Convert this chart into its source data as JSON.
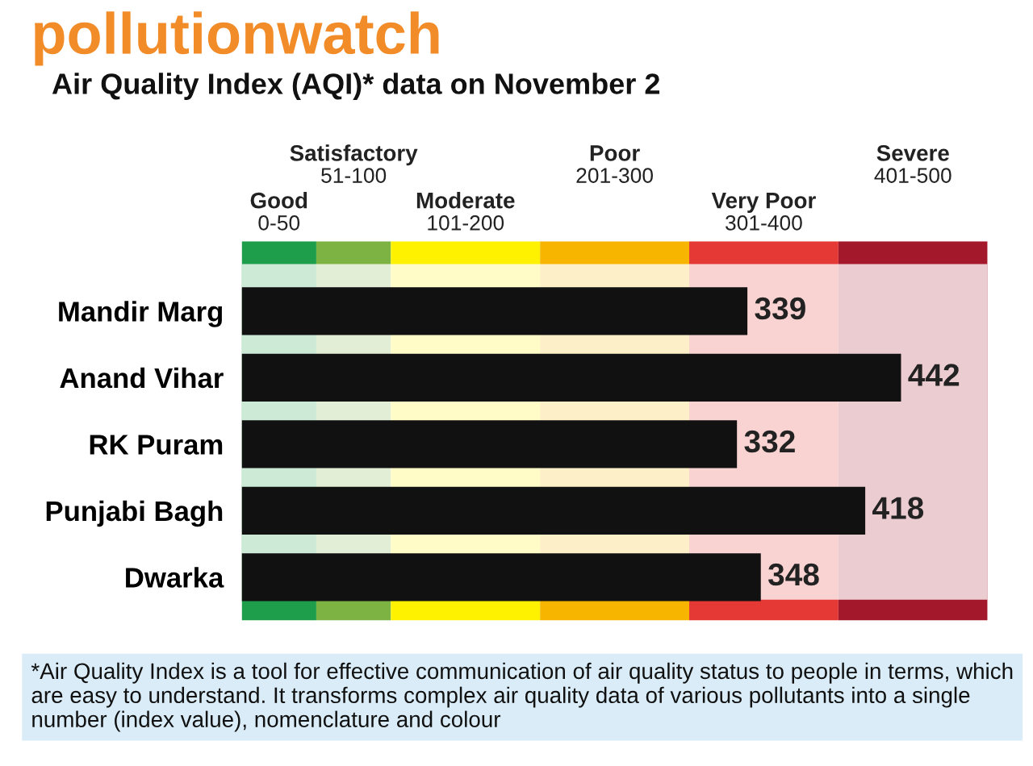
{
  "chart_data": {
    "type": "bar",
    "orientation": "horizontal",
    "title": "pollutionwatch",
    "subtitle": "Air Quality Index (AQI)* data on November 2",
    "categories": [
      "Mandir Marg",
      "Anand Vihar",
      "RK Puram",
      "Punjabi Bagh",
      "Dwarka"
    ],
    "values": [
      339,
      442,
      332,
      418,
      348
    ],
    "color": "#111111",
    "data_labels": true,
    "xlim": [
      0,
      500
    ],
    "tick_labels": "y",
    "grid": false,
    "legend": false,
    "bands": [
      {
        "axis": "x",
        "from": 0,
        "to": 50,
        "label": "Good\n0-50",
        "color": "#1e9e4a"
      },
      {
        "axis": "x",
        "from": 50,
        "to": 100,
        "label": "Satisfactory\n51-100",
        "color": "#7cb342"
      },
      {
        "axis": "x",
        "from": 100,
        "to": 200,
        "label": "Moderate\n101-200",
        "color": "#fff200"
      },
      {
        "axis": "x",
        "from": 200,
        "to": 300,
        "label": "Poor\n201-300",
        "color": "#f7b500"
      },
      {
        "axis": "x",
        "from": 300,
        "to": 400,
        "label": "Very Poor\n301-400",
        "color": "#e53935"
      },
      {
        "axis": "x",
        "from": 400,
        "to": 500,
        "label": "Severe\n401-500",
        "color": "#a3182b"
      }
    ],
    "annotations": [
      "*Air Quality Index is a tool for effective communication of air quality status to people in terms, which are easy to understand. It transforms complex air quality data of various pollutants into a single number (index value), nomenclature and colour"
    ]
  }
}
